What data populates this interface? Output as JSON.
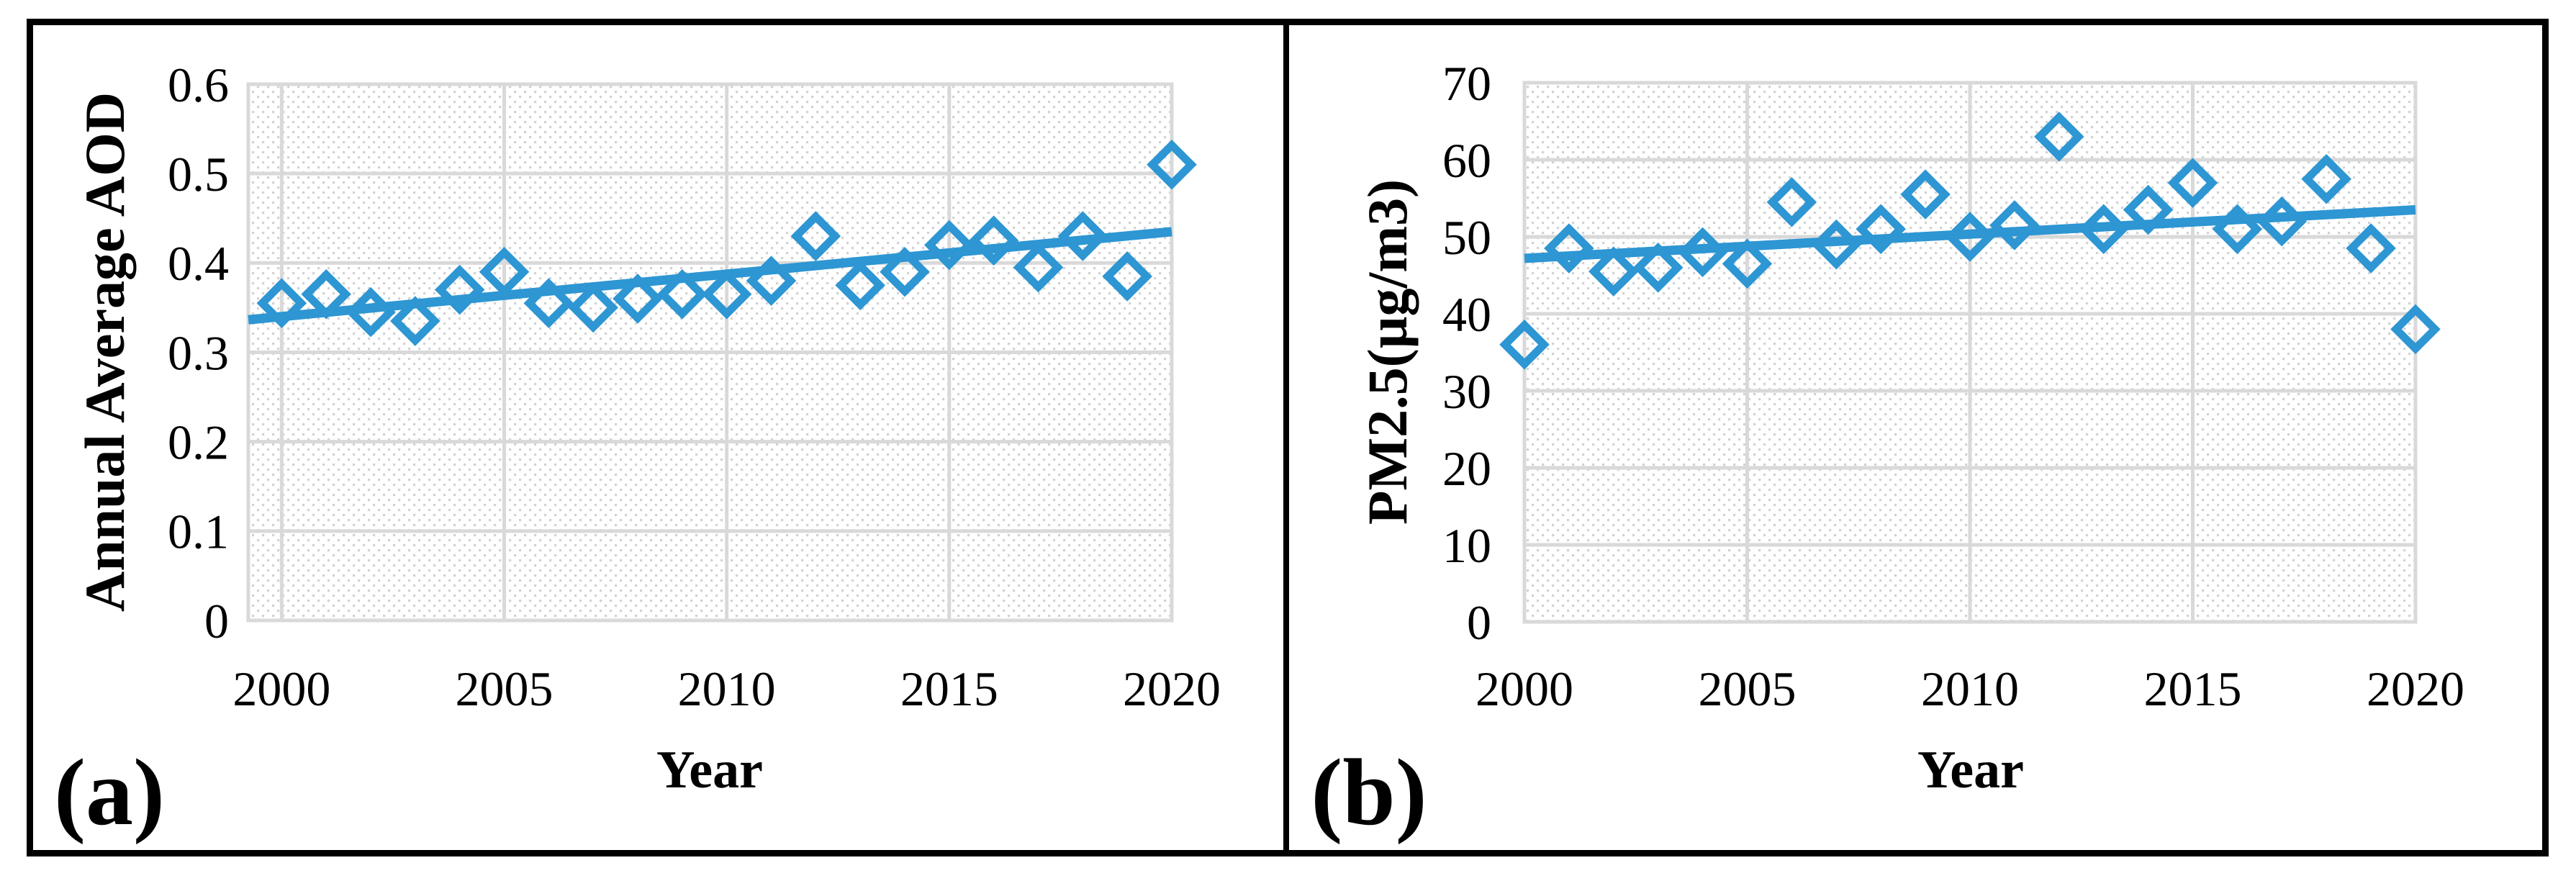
{
  "colors": {
    "accent": "#2D96D3",
    "gridline": "#D9D9D9",
    "hatch_dot": "#D2D2D2",
    "frame": "#000000",
    "background": "#FFFFFF",
    "text": "#000000"
  },
  "chart_data": [
    {
      "type": "scatter",
      "panel_label": "(a)",
      "xlabel": "Year",
      "ylabel": "Annual Average AOD",
      "x": [
        2000,
        2001,
        2002,
        2003,
        2004,
        2005,
        2006,
        2007,
        2008,
        2009,
        2010,
        2011,
        2012,
        2013,
        2014,
        2015,
        2016,
        2017,
        2018,
        2019,
        2020
      ],
      "y": [
        0.355,
        0.365,
        0.345,
        0.335,
        0.37,
        0.39,
        0.355,
        0.35,
        0.36,
        0.365,
        0.365,
        0.38,
        0.43,
        0.375,
        0.39,
        0.42,
        0.425,
        0.395,
        0.43,
        0.385,
        0.51
      ],
      "trendline": {
        "start_year": 2000,
        "start_value": 0.34,
        "end_year": 2020,
        "end_value": 0.435
      },
      "ylim": [
        0,
        0.6
      ],
      "xlim": [
        1999.25,
        2020
      ],
      "y_ticks": [
        "0",
        "0.1",
        "0.2",
        "0.3",
        "0.4",
        "0.5",
        "0.6"
      ],
      "x_ticks": [
        "2000",
        "2005",
        "2010",
        "2015",
        "2020"
      ],
      "grid": true,
      "legend": "none",
      "marker": "open-diamond"
    },
    {
      "type": "scatter",
      "panel_label": "(b)",
      "xlabel": "Year",
      "ylabel": "PM2.5(µg/m3)",
      "x": [
        2000,
        2001,
        2002,
        2003,
        2004,
        2005,
        2006,
        2007,
        2008,
        2009,
        2010,
        2011,
        2012,
        2013,
        2014,
        2015,
        2016,
        2017,
        2018,
        2019,
        2020
      ],
      "y": [
        36,
        48.5,
        45.5,
        46,
        48,
        46.5,
        54.5,
        49,
        51,
        55.5,
        50,
        51.5,
        63,
        51,
        53.5,
        57,
        51,
        52,
        57.5,
        48.5,
        38
      ],
      "trendline": {
        "start_year": 2000,
        "start_value": 47.2,
        "end_year": 2020,
        "end_value": 53.5
      },
      "ylim": [
        0,
        70
      ],
      "xlim": [
        2000,
        2020
      ],
      "y_ticks": [
        "0",
        "10",
        "20",
        "30",
        "40",
        "50",
        "60",
        "70"
      ],
      "x_ticks": [
        "2000",
        "2005",
        "2010",
        "2015",
        "2020"
      ],
      "grid": true,
      "legend": "none",
      "marker": "open-diamond"
    }
  ]
}
